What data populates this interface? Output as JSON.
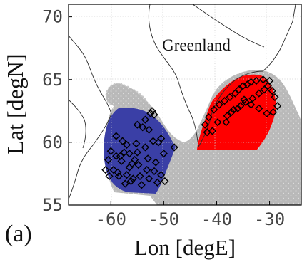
{
  "figure": {
    "panel_label": "(a)",
    "region_label": "Greenland",
    "ylabel": "Lat [degN]",
    "xlabel": "Lon [degE]"
  },
  "chart_data": {
    "type": "scatter",
    "xlabel": "Lon [degE]",
    "ylabel": "Lat [degN]",
    "xlim": [
      -68,
      -24
    ],
    "ylim": [
      55,
      71
    ],
    "xticks": [
      "-60",
      "-50",
      "-40",
      "-30"
    ],
    "xtick_values": [
      -60,
      -50,
      -40,
      -30
    ],
    "yticks": [
      "70",
      "65",
      "60",
      "55"
    ],
    "ytick_values": [
      70,
      65,
      60,
      55
    ],
    "grid": true,
    "annotations": [
      "Greenland",
      "(a)"
    ],
    "regions": [
      {
        "name": "west cluster",
        "color": "#3a3fa0",
        "lon_range": [
          -62,
          -46
        ],
        "lat_range": [
          56,
          63
        ]
      },
      {
        "name": "east cluster",
        "color": "#ff0000",
        "lon_range": [
          -43,
          -28
        ],
        "lat_range": [
          59.5,
          65
        ]
      }
    ],
    "series": [
      {
        "marker": "diamond-open",
        "color": "#000000",
        "x": [
          -52.5,
          -51.8,
          -52.2,
          -53.5,
          -55,
          -54,
          -52.8,
          -57,
          -57.5,
          -58.2,
          -59,
          -58,
          -56,
          -55.5,
          -54.8,
          -53,
          -51.5,
          -50,
          -48,
          -51,
          -50.5,
          -52,
          -53.5,
          -55,
          -56.5,
          -57.8,
          -59,
          -60,
          -60.5,
          -61,
          -60.3,
          -58.7,
          -57,
          -55.8,
          -54.5,
          -53.2,
          -51.8,
          -50.5,
          -49.8,
          -51.2,
          -52.8,
          -54.2,
          -56.2,
          -57.3,
          -58.5,
          -59.5,
          -56.5,
          -55.2
        ],
        "y": [
          62.3,
          62.2,
          62.5,
          61.8,
          61.4,
          61.2,
          61,
          59.8,
          59.2,
          58.9,
          58.9,
          58.5,
          58.3,
          58.6,
          58.2,
          58.7,
          58.4,
          59.1,
          59.6,
          60,
          60.3,
          60.1,
          59.6,
          59.2,
          59.1,
          60.1,
          60.5,
          59.3,
          58.6,
          57.8,
          57.3,
          57.6,
          57.4,
          57.1,
          57.3,
          57.8,
          57.7,
          57.4,
          56.9,
          56.8,
          57.1,
          56.6,
          56.9,
          56.7,
          57.3,
          57.8,
          58,
          59.9
        ]
      },
      {
        "marker": "diamond-open",
        "color": "#000000",
        "x": [
          -30,
          -31.2,
          -32.5,
          -33.5,
          -34.2,
          -35,
          -35.8,
          -36.5,
          -37.5,
          -38.5,
          -39.5,
          -40.5,
          -41.5,
          -42.2,
          -41.8,
          -40.8,
          -39.8,
          -38,
          -36.8,
          -35.5,
          -34.5,
          -33.2,
          -32,
          -31,
          -30.3,
          -29.5,
          -29,
          -28.5,
          -29.3,
          -30.5,
          -32,
          -33.5,
          -34.8,
          -36,
          -37.2,
          -38.2
        ],
        "y": [
          64.9,
          65,
          64.9,
          64.8,
          64.6,
          64.5,
          64.2,
          63.9,
          63.6,
          63.3,
          63,
          62.6,
          62,
          61.4,
          60.8,
          60.9,
          61.6,
          62.1,
          62.6,
          62.9,
          63.2,
          63.5,
          63.9,
          64.2,
          64.5,
          64.1,
          63.6,
          62.9,
          62.4,
          62.3,
          62.7,
          63,
          63.4,
          62.7,
          62.4,
          61.6
        ]
      }
    ]
  }
}
